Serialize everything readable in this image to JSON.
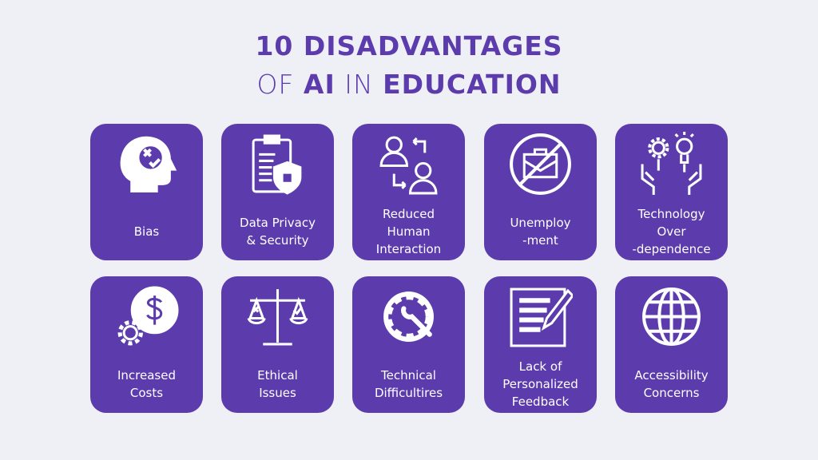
{
  "title": {
    "line1": "10 DISADVANTAGES",
    "line2_pre": "OF ",
    "line2_ai": "AI",
    "line2_mid": " IN ",
    "line2_edu": "EDUCATION"
  },
  "colors": {
    "background": "#eef0f6",
    "accent": "#5c3bad",
    "icon": "#ffffff"
  },
  "cards": [
    {
      "label": "Bias",
      "icon": "head-bias-icon"
    },
    {
      "label": "Data Privacy\n& Security",
      "icon": "clipboard-shield-icon"
    },
    {
      "label": "Reduced\nHuman\nInteraction",
      "icon": "people-exchange-icon"
    },
    {
      "label": "Unemploy\n-ment",
      "icon": "no-briefcase-icon"
    },
    {
      "label": "Technology\nOver\n-dependence",
      "icon": "hands-gear-bulb-icon"
    },
    {
      "label": "Increased\nCosts",
      "icon": "dollar-gear-icon"
    },
    {
      "label": "Ethical\nIssues",
      "icon": "scales-icon"
    },
    {
      "label": "Technical\nDifficultires",
      "icon": "gear-wrench-icon"
    },
    {
      "label": "Lack of\nPersonalized\nFeedback",
      "icon": "document-pencil-icon"
    },
    {
      "label": "Accessibility\nConcerns",
      "icon": "globe-icon"
    }
  ]
}
